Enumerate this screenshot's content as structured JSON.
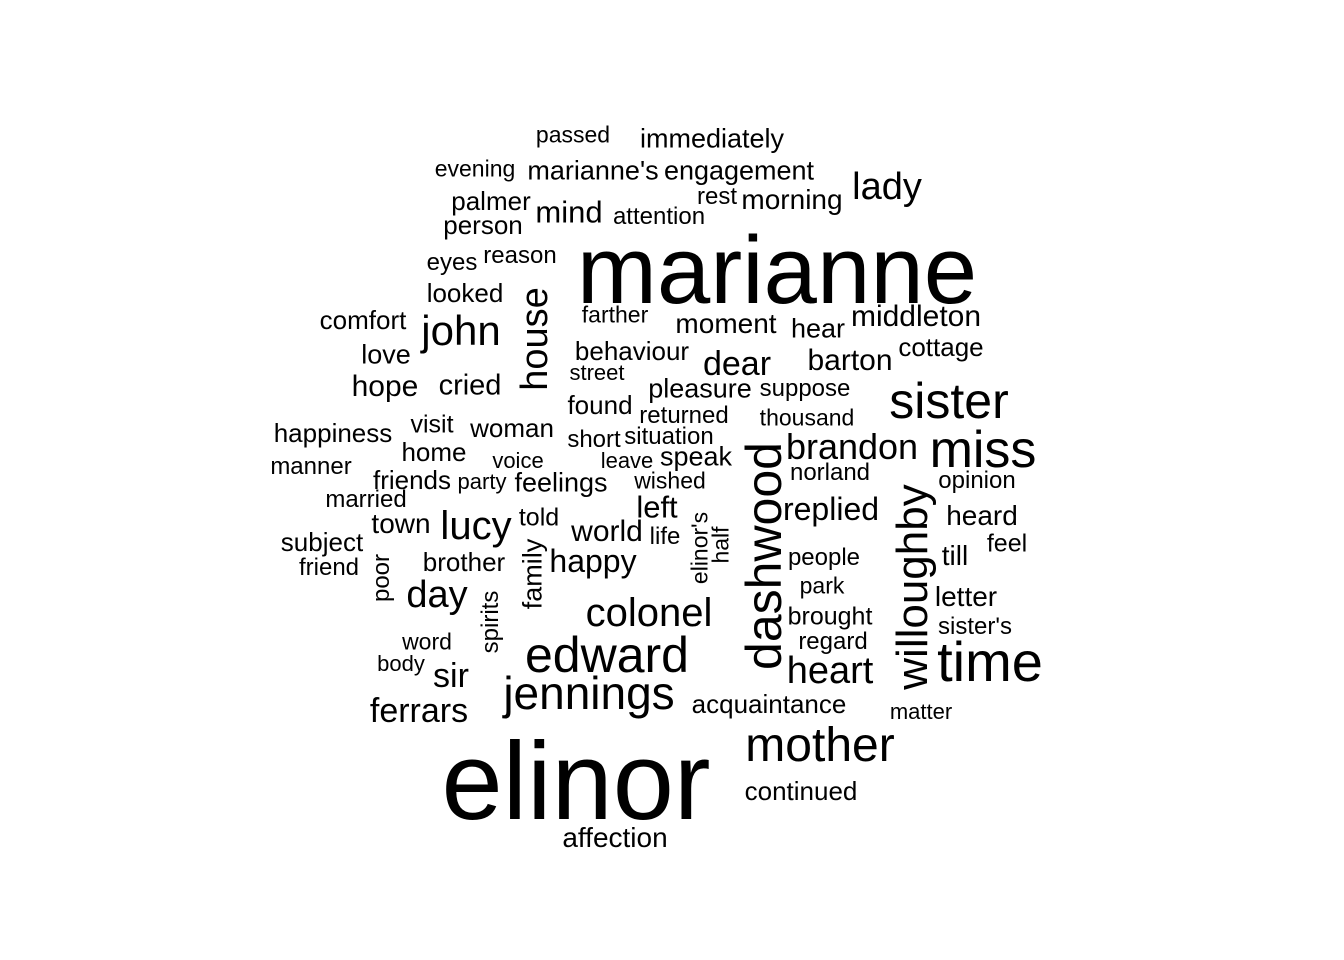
{
  "text_color": "#000000",
  "background_color": "#ffffff",
  "words": [
    {
      "text": "passed"
    },
    {
      "text": "immediately"
    },
    {
      "text": "evening"
    },
    {
      "text": "marianne's"
    },
    {
      "text": "engagement"
    },
    {
      "text": "palmer"
    },
    {
      "text": "rest"
    },
    {
      "text": "morning"
    },
    {
      "text": "lady"
    },
    {
      "text": "person"
    },
    {
      "text": "mind"
    },
    {
      "text": "attention"
    },
    {
      "text": "eyes"
    },
    {
      "text": "reason"
    },
    {
      "text": "marianne"
    },
    {
      "text": "looked"
    },
    {
      "text": "house",
      "vertical": true
    },
    {
      "text": "comfort"
    },
    {
      "text": "john"
    },
    {
      "text": "farther"
    },
    {
      "text": "moment"
    },
    {
      "text": "hear"
    },
    {
      "text": "middleton"
    },
    {
      "text": "love"
    },
    {
      "text": "behaviour"
    },
    {
      "text": "dear"
    },
    {
      "text": "barton"
    },
    {
      "text": "cottage"
    },
    {
      "text": "hope"
    },
    {
      "text": "cried"
    },
    {
      "text": "street"
    },
    {
      "text": "pleasure"
    },
    {
      "text": "suppose"
    },
    {
      "text": "sister"
    },
    {
      "text": "found"
    },
    {
      "text": "returned"
    },
    {
      "text": "thousand"
    },
    {
      "text": "happiness"
    },
    {
      "text": "visit"
    },
    {
      "text": "woman"
    },
    {
      "text": "short"
    },
    {
      "text": "situation"
    },
    {
      "text": "brandon"
    },
    {
      "text": "miss"
    },
    {
      "text": "home"
    },
    {
      "text": "manner"
    },
    {
      "text": "voice"
    },
    {
      "text": "leave"
    },
    {
      "text": "speak"
    },
    {
      "text": "norland"
    },
    {
      "text": "friends"
    },
    {
      "text": "party"
    },
    {
      "text": "feelings"
    },
    {
      "text": "wished"
    },
    {
      "text": "opinion"
    },
    {
      "text": "married"
    },
    {
      "text": "left"
    },
    {
      "text": "replied"
    },
    {
      "text": "town"
    },
    {
      "text": "lucy"
    },
    {
      "text": "told"
    },
    {
      "text": "world"
    },
    {
      "text": "heard"
    },
    {
      "text": "subject"
    },
    {
      "text": "life"
    },
    {
      "text": "elinor's",
      "vertical": true
    },
    {
      "text": "half",
      "vertical": true
    },
    {
      "text": "dashwood",
      "vertical": true
    },
    {
      "text": "willoughby",
      "vertical": true
    },
    {
      "text": "feel"
    },
    {
      "text": "friend"
    },
    {
      "text": "brother"
    },
    {
      "text": "family",
      "vertical": true
    },
    {
      "text": "happy"
    },
    {
      "text": "people"
    },
    {
      "text": "till"
    },
    {
      "text": "poor",
      "vertical": true
    },
    {
      "text": "day"
    },
    {
      "text": "park"
    },
    {
      "text": "letter"
    },
    {
      "text": "spirits",
      "vertical": true
    },
    {
      "text": "colonel"
    },
    {
      "text": "brought"
    },
    {
      "text": "sister's"
    },
    {
      "text": "word"
    },
    {
      "text": "regard"
    },
    {
      "text": "edward"
    },
    {
      "text": "body"
    },
    {
      "text": "time"
    },
    {
      "text": "sir"
    },
    {
      "text": "heart"
    },
    {
      "text": "jennings"
    },
    {
      "text": "acquaintance"
    },
    {
      "text": "ferrars"
    },
    {
      "text": "matter"
    },
    {
      "text": "mother"
    },
    {
      "text": "elinor"
    },
    {
      "text": "continued"
    },
    {
      "text": "affection"
    }
  ]
}
